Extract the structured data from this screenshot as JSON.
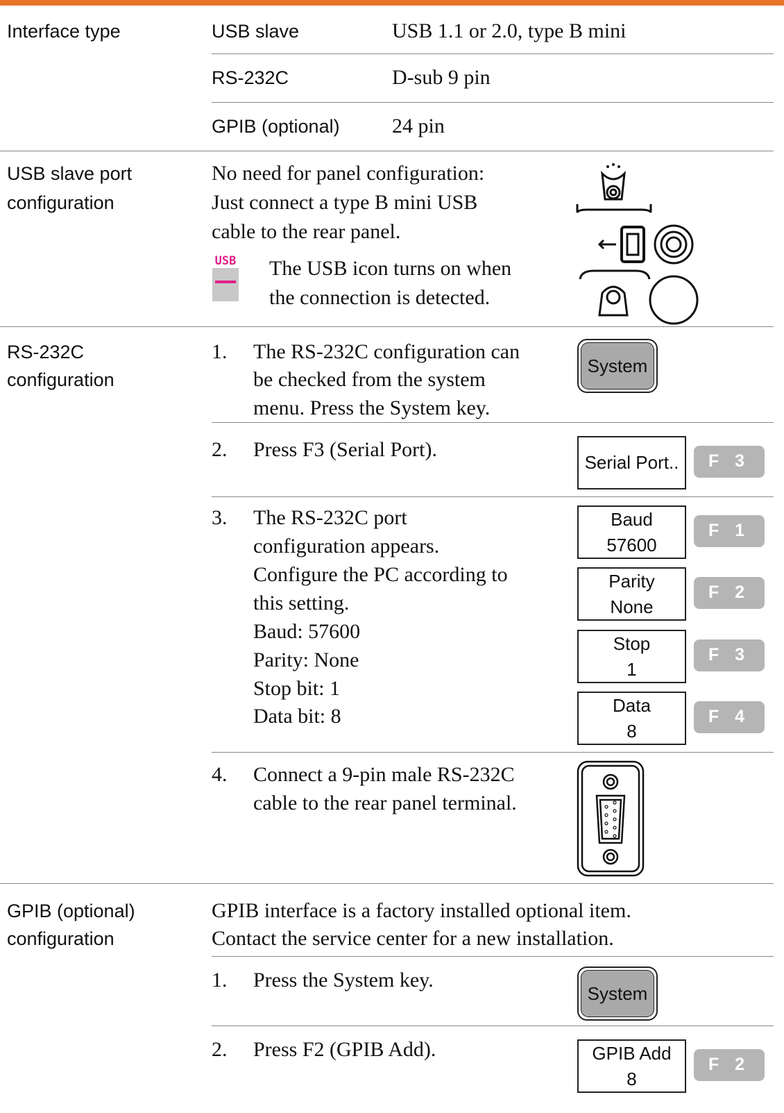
{
  "interface_type": {
    "label": "Interface type",
    "rows": [
      {
        "name": "USB slave",
        "value": "USB 1.1 or 2.0, type B mini"
      },
      {
        "name": "RS-232C",
        "value": "D-sub 9 pin"
      },
      {
        "name": "GPIB (optional)",
        "value": "24 pin"
      }
    ]
  },
  "usb_config": {
    "label": [
      "USB slave port",
      "configuration"
    ],
    "text": [
      "No need for panel configuration:",
      "Just connect a type B mini USB",
      "cable to the rear panel."
    ],
    "icon_text": "USB",
    "note": [
      "The USB icon turns on when",
      "the connection is detected."
    ]
  },
  "rs232_config": {
    "label": [
      "RS-232C",
      "configuration"
    ],
    "steps": [
      {
        "number": "1.",
        "text": [
          "The RS-232C configuration can",
          "be checked from the system",
          "menu. Press the System key."
        ],
        "key": "System"
      },
      {
        "number": "2.",
        "text": [
          "Press F3 (Serial Port)."
        ],
        "softkeys": [
          {
            "label": [
              "Serial Port.."
            ],
            "key": "F 3"
          }
        ]
      },
      {
        "number": "3.",
        "text": [
          "The RS-232C port",
          "configuration appears.",
          "Configure the PC according to",
          "this setting.",
          "Baud: 57600",
          "Parity: None",
          "Stop bit: 1",
          "Data bit: 8"
        ],
        "softkeys": [
          {
            "label": [
              "Baud",
              "57600"
            ],
            "key": "F 1"
          },
          {
            "label": [
              "Parity",
              "None"
            ],
            "key": "F 2"
          },
          {
            "label": [
              "Stop",
              "1"
            ],
            "key": "F 3"
          },
          {
            "label": [
              "Data",
              "8"
            ],
            "key": "F 4"
          }
        ]
      },
      {
        "number": "4.",
        "text": [
          "Connect a 9-pin male RS-232C",
          "cable to the rear panel terminal."
        ]
      }
    ]
  },
  "gpib_config": {
    "label": [
      "GPIB (optional)",
      "configuration"
    ],
    "text": [
      "GPIB interface is a factory installed optional item.",
      "Contact the service center for a new installation."
    ],
    "steps": [
      {
        "number": "1.",
        "text": [
          "Press the System key."
        ],
        "key": "System"
      },
      {
        "number": "2.",
        "text": [
          "Press F2 (GPIB Add)."
        ],
        "softkeys": [
          {
            "label": [
              "GPIB Add",
              "8"
            ],
            "key": "F 2"
          }
        ]
      }
    ]
  }
}
